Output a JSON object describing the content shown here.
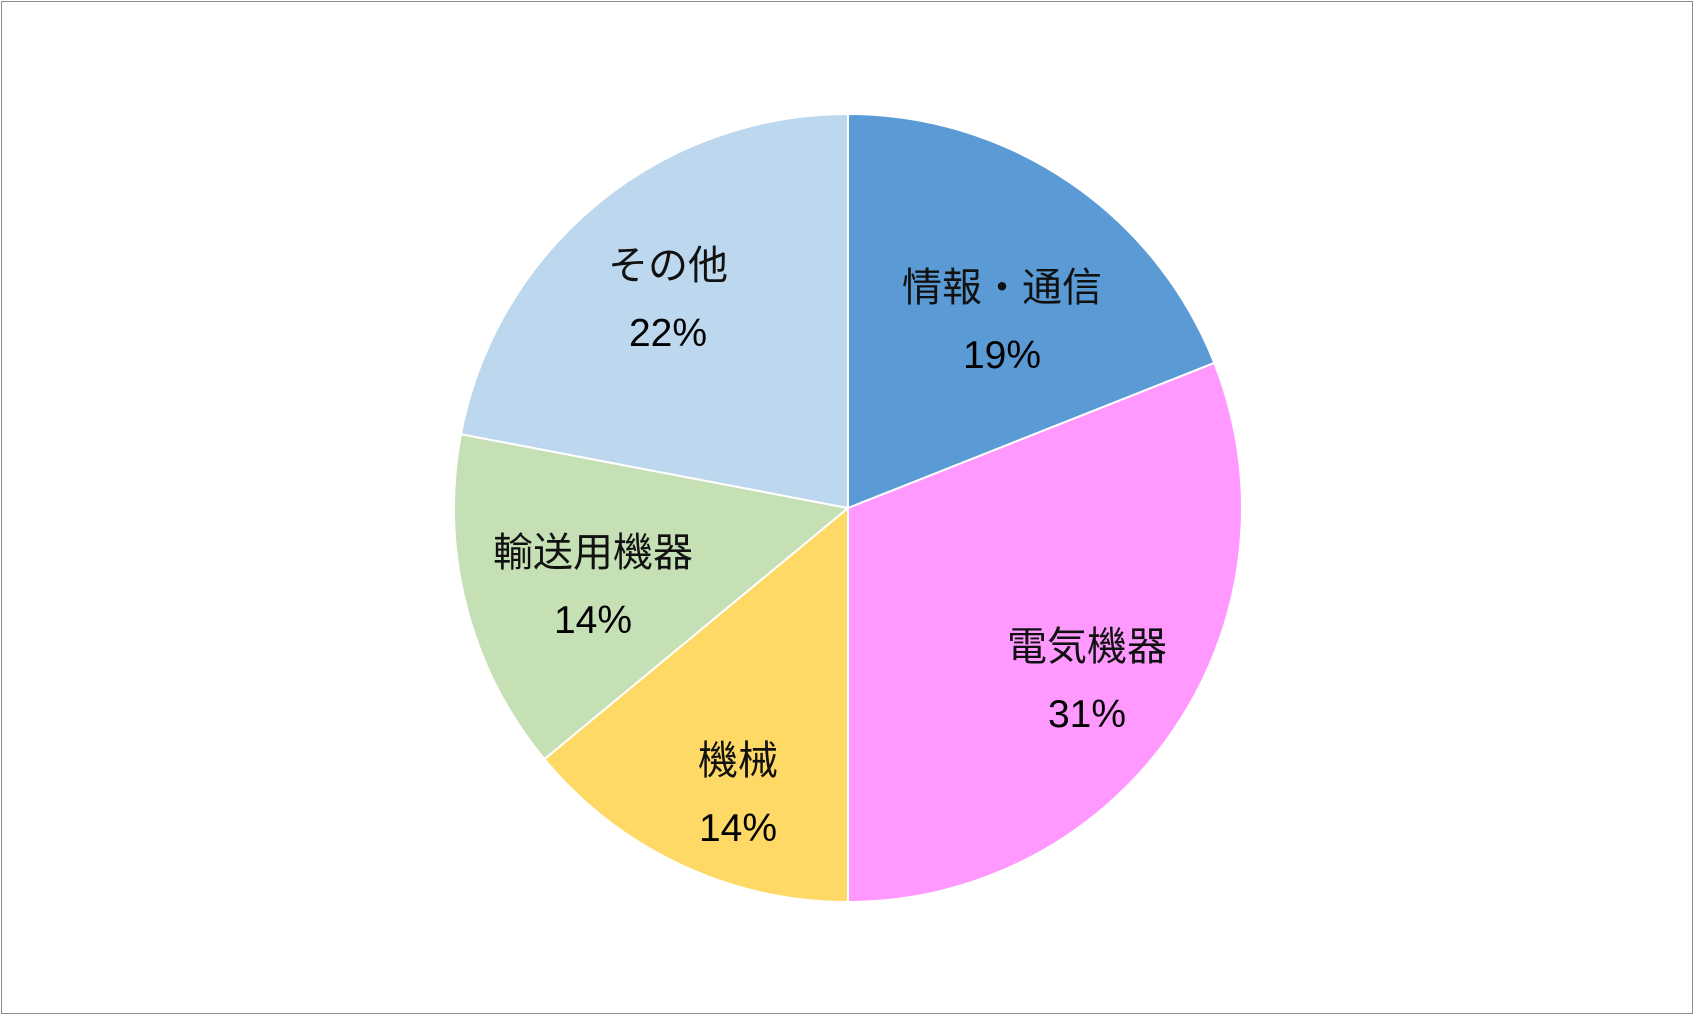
{
  "chart_data": {
    "type": "pie",
    "title": "",
    "start_angle_deg": 0,
    "direction": "clockwise",
    "slice_border": "#ffffff",
    "slices": [
      {
        "label": "情報・通信",
        "value": 19,
        "value_label": "19%",
        "color": "#5b9bd5"
      },
      {
        "label": "電気機器",
        "value": 31,
        "value_label": "31%",
        "color": "#ff99ff"
      },
      {
        "label": "機械",
        "value": 14,
        "value_label": "14%",
        "color": "#ffd966"
      },
      {
        "label": "輸送用機器",
        "value": 14,
        "value_label": "14%",
        "color": "#c5e0b4"
      },
      {
        "label": "その他",
        "value": 22,
        "value_label": "22%",
        "color": "#bdd7ee"
      }
    ]
  }
}
